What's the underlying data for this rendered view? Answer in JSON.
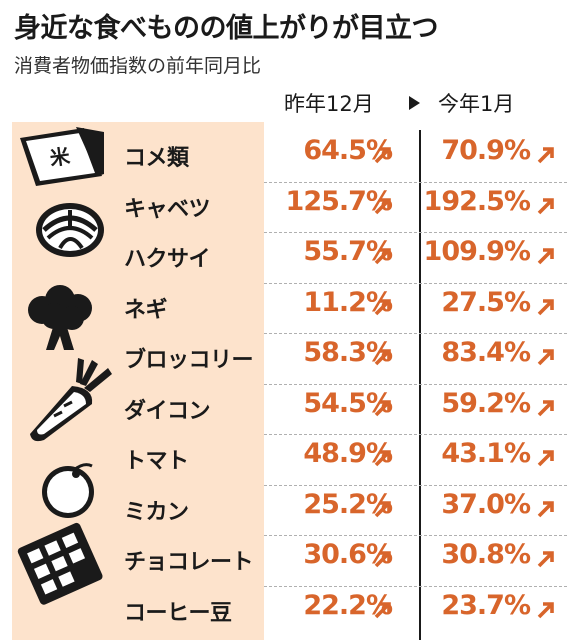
{
  "header": {
    "title": "身近な食べものの値上がりが目立つ",
    "subtitle": "消費者物価指数の前年同月比"
  },
  "columns": [
    "昨年12月",
    "今年1月"
  ],
  "colors": {
    "accent": "#d8652b",
    "panel": "#fde3cc",
    "ink": "#1a1a1a"
  },
  "chart_data": {
    "type": "table",
    "title": "身近な食べものの値上がりが目立つ",
    "subtitle": "消費者物価指数の前年同月比",
    "categories": [
      "コメ類",
      "キャベツ",
      "ハクサイ",
      "ネギ",
      "ブロッコリー",
      "ダイコン",
      "トマト",
      "ミカン",
      "チョコレート",
      "コーヒー豆"
    ],
    "series": [
      {
        "name": "昨年12月",
        "values": [
          "64.5%",
          "125.7%",
          "55.7%",
          "11.2%",
          "58.3%",
          "54.5%",
          "48.9%",
          "25.2%",
          "30.6%",
          "22.2%"
        ]
      },
      {
        "name": "今年1月",
        "values": [
          "70.9%",
          "192.5%",
          "109.9%",
          "27.5%",
          "83.4%",
          "59.2%",
          "43.1%",
          "37.0%",
          "30.8%",
          "23.7%"
        ]
      }
    ],
    "icons": [
      "rice-bag-icon",
      "cabbage-icon",
      "broccoli-icon",
      "daikon-icon",
      "mikan-icon",
      "chocolate-icon",
      "up-arrow-icon"
    ]
  }
}
